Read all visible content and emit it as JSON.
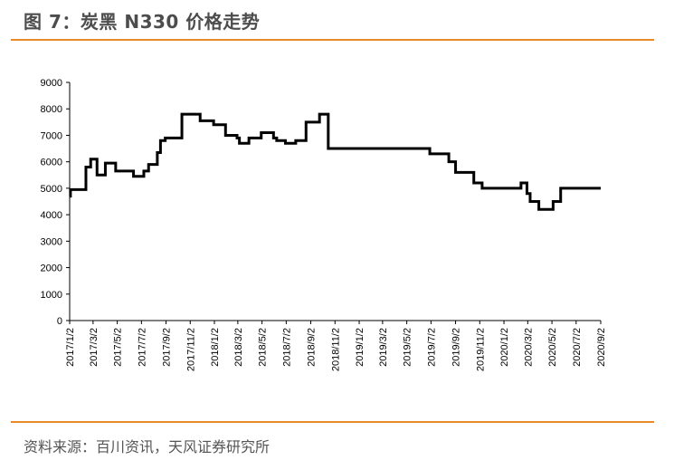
{
  "figure": {
    "title": "图 7：炭黑 N330 价格走势",
    "source": "资料来源：百川资讯，天风证券研究所"
  },
  "colors": {
    "accent_rule": "#e8892b",
    "line": "#000000",
    "title_text": "#4d4d4d"
  },
  "chart_data": {
    "type": "line",
    "title": "",
    "xlabel": "",
    "ylabel": "",
    "step": true,
    "ylim": [
      0,
      9000
    ],
    "yticks": [
      "0",
      "1000",
      "2000",
      "3000",
      "4000",
      "5000",
      "6000",
      "7000",
      "8000",
      "9000"
    ],
    "x_range": [
      "2017/1/2",
      "2020/9/2"
    ],
    "xticks": [
      "2017/1/2",
      "2017/3/2",
      "2017/5/2",
      "2017/7/2",
      "2017/9/2",
      "2017/11/2",
      "2018/1/2",
      "2018/3/2",
      "2018/5/2",
      "2018/7/2",
      "2018/9/2",
      "2018/11/2",
      "2019/1/2",
      "2019/3/2",
      "2019/5/2",
      "2019/7/2",
      "2019/9/2",
      "2019/11/2",
      "2020/1/2",
      "2020/3/2",
      "2020/5/2",
      "2020/7/2",
      "2020/9/2"
    ],
    "grid": false,
    "legend": "none",
    "series": [
      {
        "name": "",
        "points": [
          [
            "2017/1/2",
            4700
          ],
          [
            "2017/1/4",
            4950
          ],
          [
            "2017/2/12",
            5800
          ],
          [
            "2017/2/24",
            6100
          ],
          [
            "2017/3/12",
            5500
          ],
          [
            "2017/4/2",
            5950
          ],
          [
            "2017/4/28",
            5650
          ],
          [
            "2017/6/12",
            5450
          ],
          [
            "2017/7/8",
            5650
          ],
          [
            "2017/7/20",
            5900
          ],
          [
            "2017/8/11",
            6350
          ],
          [
            "2017/8/19",
            6800
          ],
          [
            "2017/8/31",
            6900
          ],
          [
            "2017/10/12",
            7800
          ],
          [
            "2017/11/27",
            7550
          ],
          [
            "2017/12/31",
            7400
          ],
          [
            "2018/1/30",
            7000
          ],
          [
            "2018/2/28",
            6900
          ],
          [
            "2018/3/6",
            6700
          ],
          [
            "2018/3/30",
            6900
          ],
          [
            "2018/4/30",
            7100
          ],
          [
            "2018/5/31",
            6900
          ],
          [
            "2018/6/8",
            6800
          ],
          [
            "2018/6/30",
            6700
          ],
          [
            "2018/7/26",
            6800
          ],
          [
            "2018/8/21",
            7500
          ],
          [
            "2018/9/24",
            7800
          ],
          [
            "2018/10/16",
            6500
          ],
          [
            "2019/6/29",
            6300
          ],
          [
            "2019/8/16",
            6000
          ],
          [
            "2019/9/2",
            5600
          ],
          [
            "2019/10/18",
            5200
          ],
          [
            "2019/11/8",
            5000
          ],
          [
            "2020/2/14",
            5200
          ],
          [
            "2020/2/29",
            4800
          ],
          [
            "2020/3/8",
            4500
          ],
          [
            "2020/3/30",
            4200
          ],
          [
            "2020/5/5",
            4500
          ],
          [
            "2020/5/24",
            5000
          ],
          [
            "2020/9/2",
            5000
          ]
        ]
      }
    ]
  }
}
